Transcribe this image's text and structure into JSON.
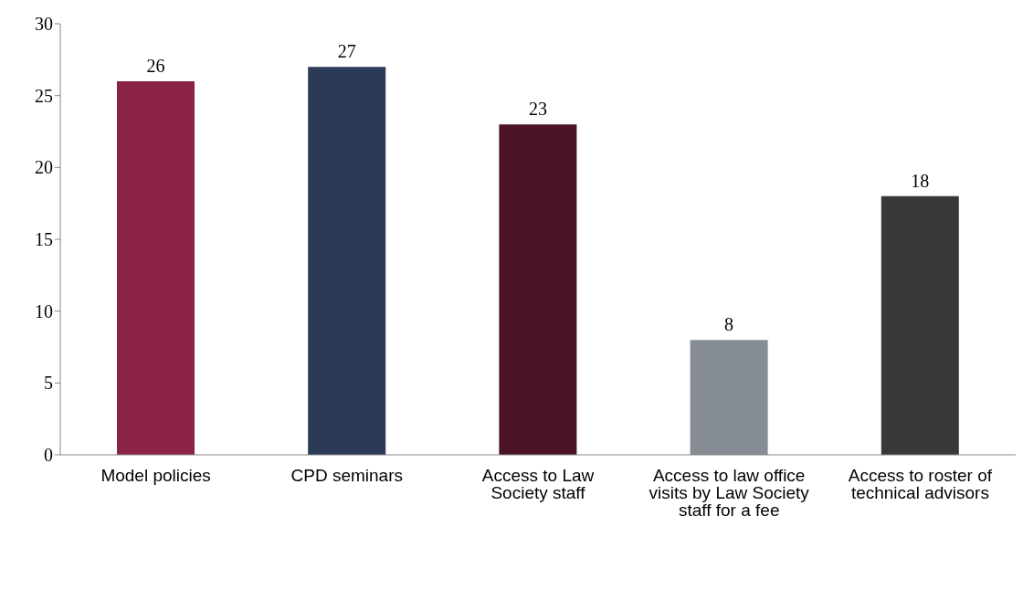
{
  "chart_data": {
    "type": "bar",
    "categories": [
      "Model policies",
      "CPD seminars",
      "Access to Law Society staff",
      "Access to law office visits by Law Society staff for a fee",
      "Access to roster of technical advisors"
    ],
    "values": [
      26,
      27,
      23,
      8,
      18
    ],
    "colors": [
      "#8b2346",
      "#2b3a57",
      "#4a1426",
      "#858c93",
      "#363936"
    ],
    "ylim": [
      0,
      30
    ],
    "yticks": [
      0,
      5,
      10,
      15,
      20,
      25,
      30
    ],
    "data_labels": true,
    "grid": false
  }
}
